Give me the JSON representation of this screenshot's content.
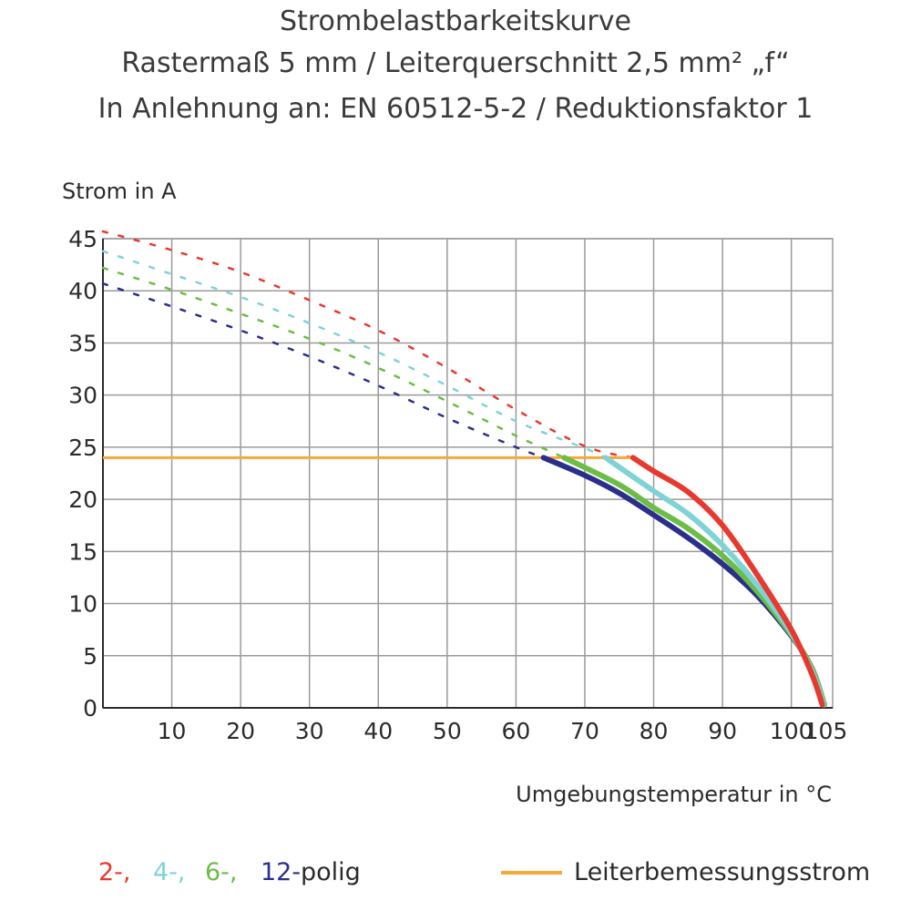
{
  "chart_data": {
    "type": "line",
    "title": "Strombelastbarkeitskurve",
    "subtitle": "Rastermaß 5 mm / Leiterquerschnitt 2,5 mm² „f“",
    "subtitle2": "In Anlehnung an: EN 60512-5-2 / Reduktionsfaktor 1",
    "ylabel": "Strom in A",
    "xlabel": "Umgebungstemperatur in  °C",
    "xlim": [
      0,
      106
    ],
    "ylim": [
      0,
      45
    ],
    "xticks": [
      "10",
      "20",
      "30",
      "40",
      "50",
      "60",
      "70",
      "80",
      "90",
      "100",
      "105"
    ],
    "xtick_values": [
      10,
      20,
      30,
      40,
      50,
      60,
      70,
      80,
      90,
      100,
      105
    ],
    "yticks": [
      "0",
      "5",
      "10",
      "15",
      "20",
      "25",
      "30",
      "35",
      "40",
      "45"
    ],
    "ytick_values": [
      0,
      5,
      10,
      15,
      20,
      25,
      30,
      35,
      40,
      45
    ],
    "grid": true,
    "legend_position": "bottom",
    "series": [
      {
        "name": "2-,",
        "color": "#e8392e",
        "dashed": [
          [
            0,
            45.7
          ],
          [
            10,
            43.9
          ],
          [
            20,
            41.8
          ],
          [
            30,
            39.1
          ],
          [
            40,
            36.2
          ],
          [
            50,
            32.6
          ],
          [
            60,
            28.6
          ],
          [
            70,
            25.1
          ],
          [
            77,
            24
          ]
        ],
        "solid": [
          [
            77,
            24
          ],
          [
            80,
            22.7
          ],
          [
            85,
            20.7
          ],
          [
            90,
            17.5
          ],
          [
            95,
            12.8
          ],
          [
            100,
            7.5
          ],
          [
            103,
            3.2
          ],
          [
            104.5,
            0.3
          ]
        ]
      },
      {
        "name": "4-,",
        "color": "#7fd3d6",
        "dashed": [
          [
            0,
            43.8
          ],
          [
            10,
            41.6
          ],
          [
            20,
            39.4
          ],
          [
            30,
            36.9
          ],
          [
            40,
            34.1
          ],
          [
            50,
            30.9
          ],
          [
            60,
            27.5
          ],
          [
            70,
            24.9
          ],
          [
            73,
            24
          ]
        ],
        "solid": [
          [
            73,
            24
          ],
          [
            80,
            20.8
          ],
          [
            85,
            18.6
          ],
          [
            90,
            15.6
          ],
          [
            95,
            11.8
          ],
          [
            100,
            7.2
          ],
          [
            103,
            3.5
          ],
          [
            104.7,
            0.3
          ]
        ]
      },
      {
        "name": "6-,",
        "color": "#6cbd45",
        "dashed": [
          [
            0,
            42.2
          ],
          [
            10,
            40.1
          ],
          [
            20,
            37.8
          ],
          [
            30,
            35.4
          ],
          [
            40,
            32.6
          ],
          [
            50,
            29.4
          ],
          [
            60,
            26.1
          ],
          [
            67,
            24
          ]
        ],
        "solid": [
          [
            67,
            24
          ],
          [
            75,
            21.4
          ],
          [
            80,
            19.2
          ],
          [
            85,
            17.2
          ],
          [
            90,
            14.6
          ],
          [
            95,
            11.2
          ],
          [
            100,
            7
          ],
          [
            103,
            3.8
          ],
          [
            104.8,
            0.3
          ]
        ]
      },
      {
        "name": "12-",
        "color": "#2b2f8c",
        "dashed": [
          [
            0,
            40.7
          ],
          [
            10,
            38.5
          ],
          [
            20,
            36.2
          ],
          [
            30,
            33.7
          ],
          [
            40,
            30.9
          ],
          [
            50,
            27.8
          ],
          [
            60,
            25
          ],
          [
            64,
            24
          ]
        ],
        "solid": [
          [
            64,
            24
          ],
          [
            70,
            22.3
          ],
          [
            75,
            20.6
          ],
          [
            80,
            18.5
          ],
          [
            85,
            16.3
          ],
          [
            90,
            13.8
          ],
          [
            95,
            10.8
          ],
          [
            100,
            6.9
          ],
          [
            103,
            3.8
          ],
          [
            104.8,
            0.3
          ]
        ]
      }
    ],
    "rated_current": {
      "name": "Leiterbemessungsstrom",
      "color": "#f5a93a",
      "x": [
        0,
        77
      ],
      "y": 24
    },
    "legend_suffix": "polig"
  }
}
